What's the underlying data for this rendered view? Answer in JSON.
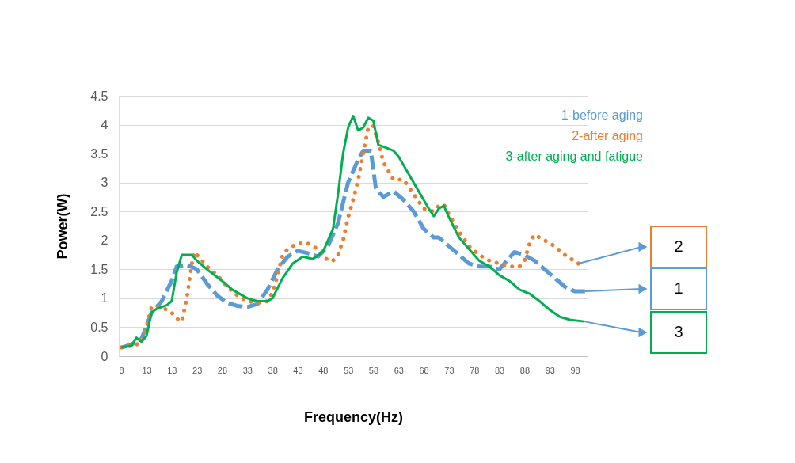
{
  "chart_data": {
    "type": "line",
    "xlabel": "Frequency(Hz)",
    "ylabel": "Power(W)",
    "xlim": [
      7.5,
      100.5
    ],
    "xticks": [
      8,
      13,
      18,
      23,
      28,
      33,
      38,
      43,
      48,
      53,
      58,
      63,
      68,
      73,
      78,
      83,
      88,
      93,
      98
    ],
    "ylim": [
      0,
      4.5
    ],
    "yticks": [
      0,
      0.5,
      1,
      1.5,
      2,
      2.5,
      3,
      3.5,
      4,
      4.5
    ],
    "grid": "y",
    "legend": "top right",
    "series": [
      {
        "name": "1-before aging",
        "color": "#5b9bd5",
        "line_style": "dashed",
        "x": [
          8,
          10,
          12,
          14,
          16,
          18,
          19,
          21,
          23,
          25,
          27,
          29,
          31,
          33,
          35,
          37,
          39,
          41,
          43,
          45,
          47,
          49,
          51,
          53,
          55,
          56,
          57.5,
          58.5,
          60,
          62,
          64,
          66,
          68,
          70,
          71,
          73,
          75,
          77,
          79,
          81,
          83,
          85,
          86,
          88,
          90,
          92,
          94,
          96,
          98,
          100
        ],
        "values": [
          0.15,
          0.2,
          0.3,
          0.75,
          0.95,
          1.3,
          1.55,
          1.58,
          1.5,
          1.25,
          1.05,
          0.92,
          0.87,
          0.85,
          0.9,
          1.15,
          1.5,
          1.72,
          1.82,
          1.78,
          1.72,
          1.9,
          2.3,
          3.0,
          3.4,
          3.55,
          3.55,
          2.9,
          2.75,
          2.85,
          2.7,
          2.5,
          2.2,
          2.05,
          2.05,
          1.9,
          1.75,
          1.6,
          1.55,
          1.55,
          1.5,
          1.7,
          1.8,
          1.75,
          1.65,
          1.5,
          1.35,
          1.2,
          1.12,
          1.12
        ]
      },
      {
        "name": "2-after aging",
        "color": "#ed7d31",
        "line_style": "dotted",
        "x": [
          8,
          10,
          11,
          12,
          13,
          14,
          15,
          16,
          18,
          19,
          20,
          21,
          22,
          22.5,
          24,
          25,
          27,
          29,
          31,
          33,
          35,
          37,
          38,
          39,
          40,
          41,
          43,
          45,
          47,
          49,
          50,
          51,
          52,
          53,
          54,
          55,
          56,
          57,
          58,
          59,
          60,
          61,
          62,
          64,
          66,
          68,
          70,
          71,
          72,
          73,
          75,
          77,
          79,
          81,
          83,
          85,
          87,
          88,
          89,
          90,
          92,
          94,
          96,
          98.7
        ],
        "values": [
          0.15,
          0.18,
          0.2,
          0.25,
          0.5,
          0.85,
          0.85,
          0.85,
          0.75,
          0.65,
          0.6,
          1.0,
          1.6,
          1.8,
          1.65,
          1.55,
          1.4,
          1.2,
          1.05,
          0.95,
          0.92,
          0.95,
          1.1,
          1.4,
          1.75,
          1.85,
          1.95,
          1.95,
          1.85,
          1.65,
          1.65,
          1.75,
          2.0,
          2.4,
          2.7,
          3.05,
          3.5,
          3.95,
          3.98,
          3.7,
          3.35,
          3.2,
          3.05,
          3.05,
          2.8,
          2.55,
          2.5,
          2.6,
          2.62,
          2.45,
          2.15,
          1.9,
          1.75,
          1.65,
          1.6,
          1.55,
          1.55,
          1.65,
          1.95,
          2.1,
          2.0,
          1.9,
          1.75,
          1.6
        ]
      },
      {
        "name": "3-after aging and fatigue",
        "color": "#00b050",
        "line_style": "solid",
        "x": [
          8,
          10,
          11,
          12,
          13,
          14,
          15,
          17,
          18,
          19,
          20,
          22,
          23,
          25,
          28,
          30,
          33,
          35,
          37,
          38,
          40,
          42,
          44,
          46,
          48,
          50,
          51,
          52,
          53,
          54,
          55,
          56,
          57,
          58,
          59,
          60,
          62,
          63,
          65,
          67,
          69,
          70,
          71,
          72,
          73,
          75,
          77,
          79,
          81,
          83,
          85,
          87,
          89,
          91,
          93,
          95,
          97,
          99.8
        ],
        "values": [
          0.15,
          0.18,
          0.32,
          0.25,
          0.35,
          0.75,
          0.82,
          0.88,
          0.95,
          1.45,
          1.75,
          1.75,
          1.65,
          1.5,
          1.3,
          1.15,
          1.0,
          0.95,
          0.95,
          1.0,
          1.35,
          1.6,
          1.72,
          1.68,
          1.8,
          2.2,
          2.8,
          3.5,
          3.95,
          4.15,
          3.9,
          3.95,
          4.12,
          4.07,
          3.65,
          3.62,
          3.55,
          3.45,
          3.15,
          2.85,
          2.55,
          2.42,
          2.55,
          2.6,
          2.4,
          2.05,
          1.85,
          1.65,
          1.55,
          1.4,
          1.3,
          1.15,
          1.08,
          0.95,
          0.8,
          0.68,
          0.63,
          0.6
        ]
      }
    ],
    "annotations": [
      "2",
      "1",
      "3"
    ]
  }
}
